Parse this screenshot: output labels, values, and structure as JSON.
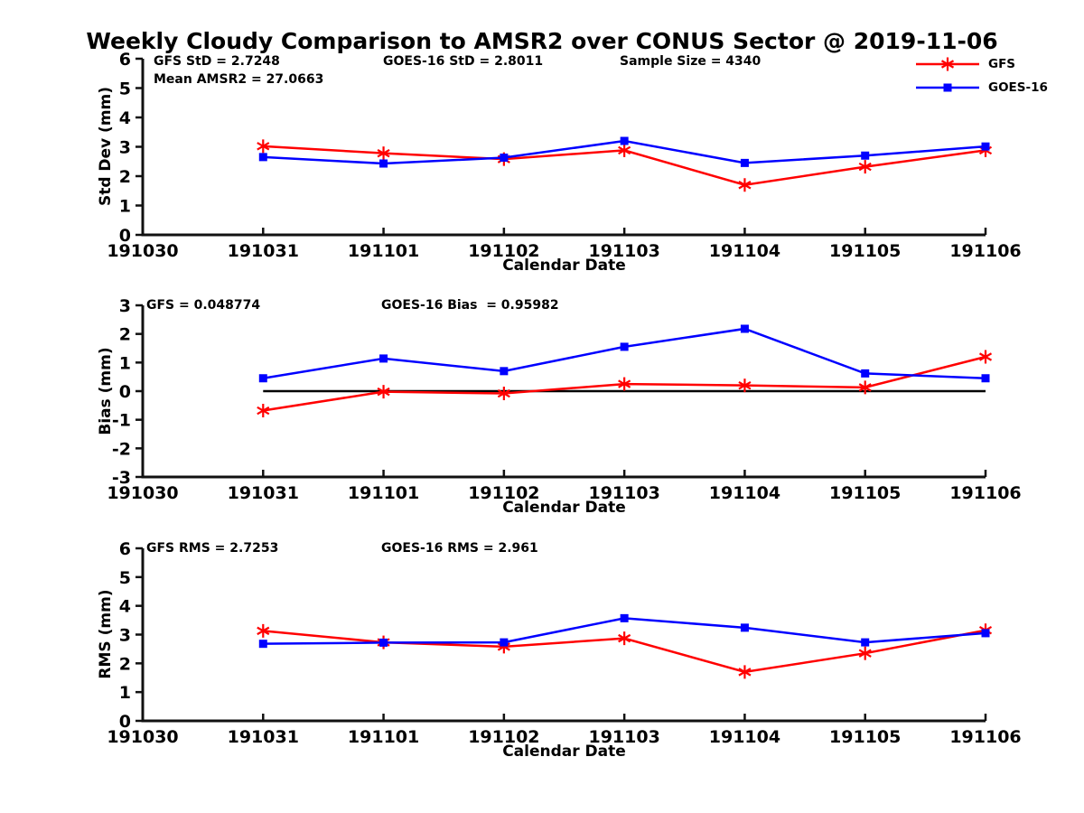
{
  "title": "Weekly Cloudy Comparison to AMSR2 over CONUS Sector @ 2019-11-06",
  "colors": {
    "gfs": "#ff0000",
    "goes16": "#0000ff",
    "axis": "#111111",
    "zero_line": "#000000",
    "background": "#ffffff"
  },
  "legend": {
    "position": "top-right",
    "items": [
      {
        "label": "GFS",
        "color": "#ff0000",
        "marker": "asterisk"
      },
      {
        "label": "GOES-16",
        "color": "#0000ff",
        "marker": "square"
      }
    ]
  },
  "chart_data": [
    {
      "type": "line",
      "name": "std-dev",
      "ylabel": "Std Dev (mm)",
      "xlabel": "Calendar Date",
      "ylim": [
        0,
        6
      ],
      "yticks": [
        0,
        1,
        2,
        3,
        4,
        5,
        6
      ],
      "grid": false,
      "categories": [
        "191030",
        "191031",
        "191101",
        "191102",
        "191103",
        "191104",
        "191105",
        "191106"
      ],
      "x": [
        "191031",
        "191101",
        "191102",
        "191103",
        "191104",
        "191105",
        "191106"
      ],
      "series": [
        {
          "name": "GFS",
          "color": "#ff0000",
          "marker": "asterisk",
          "values": [
            3.02,
            2.78,
            2.58,
            2.88,
            1.7,
            2.32,
            2.88
          ]
        },
        {
          "name": "GOES-16",
          "color": "#0000ff",
          "marker": "square",
          "values": [
            2.65,
            2.43,
            2.63,
            3.2,
            2.45,
            2.7,
            3.01
          ]
        }
      ],
      "annotations": {
        "gfs": "GFS StD = 2.7248",
        "mean_amsr2": "Mean AMSR2 = 27.0663",
        "goes": "GOES-16 StD = 2.8011",
        "sample_size": "Sample Size = 4340"
      }
    },
    {
      "type": "line",
      "name": "bias",
      "ylabel": "Bias (mm)",
      "xlabel": "Calendar Date",
      "ylim": [
        -3,
        3
      ],
      "yticks": [
        -3,
        -2,
        -1,
        0,
        1,
        2,
        3
      ],
      "grid": false,
      "zero_line": true,
      "categories": [
        "191030",
        "191031",
        "191101",
        "191102",
        "191103",
        "191104",
        "191105",
        "191106"
      ],
      "x": [
        "191031",
        "191101",
        "191102",
        "191103",
        "191104",
        "191105",
        "191106"
      ],
      "series": [
        {
          "name": "GFS",
          "color": "#ff0000",
          "marker": "asterisk",
          "values": [
            -0.68,
            -0.02,
            -0.08,
            0.25,
            0.2,
            0.13,
            1.2
          ]
        },
        {
          "name": "GOES-16",
          "color": "#0000ff",
          "marker": "square",
          "values": [
            0.45,
            1.14,
            0.7,
            1.55,
            2.18,
            0.62,
            0.45
          ]
        }
      ],
      "annotations": {
        "gfs": "GFS = 0.048774",
        "goes": "GOES-16 Bias  = 0.95982"
      }
    },
    {
      "type": "line",
      "name": "rms",
      "ylabel": "RMS (mm)",
      "xlabel": "Calendar Date",
      "ylim": [
        0,
        6
      ],
      "yticks": [
        0,
        1,
        2,
        3,
        4,
        5,
        6
      ],
      "grid": false,
      "categories": [
        "191030",
        "191031",
        "191101",
        "191102",
        "191103",
        "191104",
        "191105",
        "191106"
      ],
      "x": [
        "191031",
        "191101",
        "191102",
        "191103",
        "191104",
        "191105",
        "191106"
      ],
      "series": [
        {
          "name": "GFS",
          "color": "#ff0000",
          "marker": "asterisk",
          "values": [
            3.13,
            2.73,
            2.58,
            2.87,
            1.7,
            2.35,
            3.15
          ]
        },
        {
          "name": "GOES-16",
          "color": "#0000ff",
          "marker": "square",
          "values": [
            2.68,
            2.72,
            2.73,
            3.57,
            3.24,
            2.73,
            3.05
          ]
        }
      ],
      "annotations": {
        "gfs": "GFS RMS = 2.7253",
        "goes": "GOES-16 RMS = 2.961"
      }
    }
  ]
}
